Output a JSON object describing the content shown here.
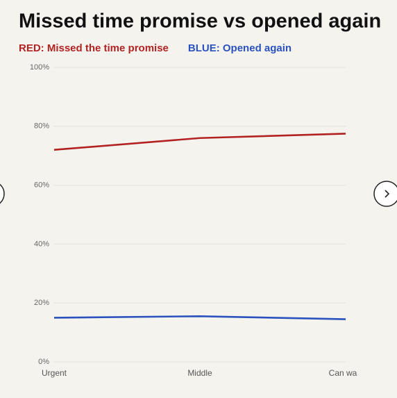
{
  "chart_data": {
    "type": "line",
    "title": "Missed time promise vs opened again",
    "categories": [
      "Urgent",
      "Middle",
      "Can wa"
    ],
    "series": [
      {
        "name": "RED: Missed the time promise",
        "color": "#b22222",
        "values": [
          72,
          76,
          77.5
        ]
      },
      {
        "name": "BLUE: Opened again",
        "color": "#2a52be",
        "values": [
          15,
          15.5,
          14.5
        ]
      }
    ],
    "ylim": [
      0,
      100
    ],
    "yticks": [
      {
        "value": 0,
        "label": "0%"
      },
      {
        "value": 20,
        "label": "20%"
      },
      {
        "value": 40,
        "label": "40%"
      },
      {
        "value": 60,
        "label": "60%"
      },
      {
        "value": 80,
        "label": "80%"
      },
      {
        "value": 100,
        "label": "100%"
      }
    ],
    "grid": true
  }
}
